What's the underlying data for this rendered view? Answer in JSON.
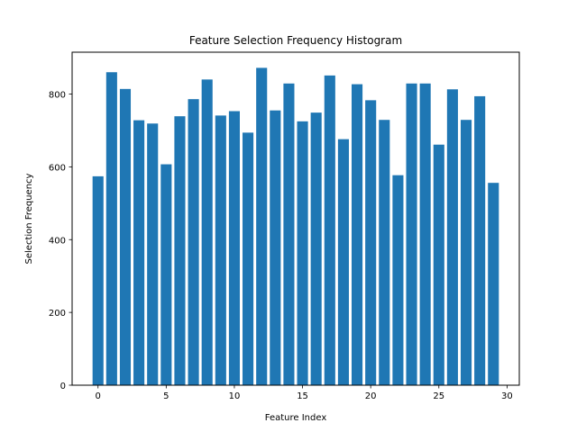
{
  "chart_data": {
    "type": "bar",
    "title": "Feature Selection Frequency Histogram",
    "xlabel": "Feature Index",
    "ylabel": "Selection Frequency",
    "x": [
      0,
      1,
      2,
      3,
      4,
      5,
      6,
      7,
      8,
      9,
      10,
      11,
      12,
      13,
      14,
      15,
      16,
      17,
      18,
      19,
      20,
      21,
      22,
      23,
      24,
      25,
      26,
      27,
      28,
      29
    ],
    "values": [
      574,
      860,
      814,
      728,
      719,
      607,
      739,
      786,
      840,
      741,
      753,
      694,
      872,
      755,
      829,
      725,
      749,
      851,
      676,
      827,
      783,
      729,
      577,
      829,
      829,
      661,
      813,
      729,
      794,
      556
    ],
    "xlim": [
      -1.9,
      30.9
    ],
    "ylim": [
      0,
      915
    ],
    "xticks": [
      0,
      5,
      10,
      15,
      20,
      25,
      30
    ],
    "yticks": [
      0,
      200,
      400,
      600,
      800
    ],
    "bar_color": "#1f77b4",
    "grid": false
  }
}
